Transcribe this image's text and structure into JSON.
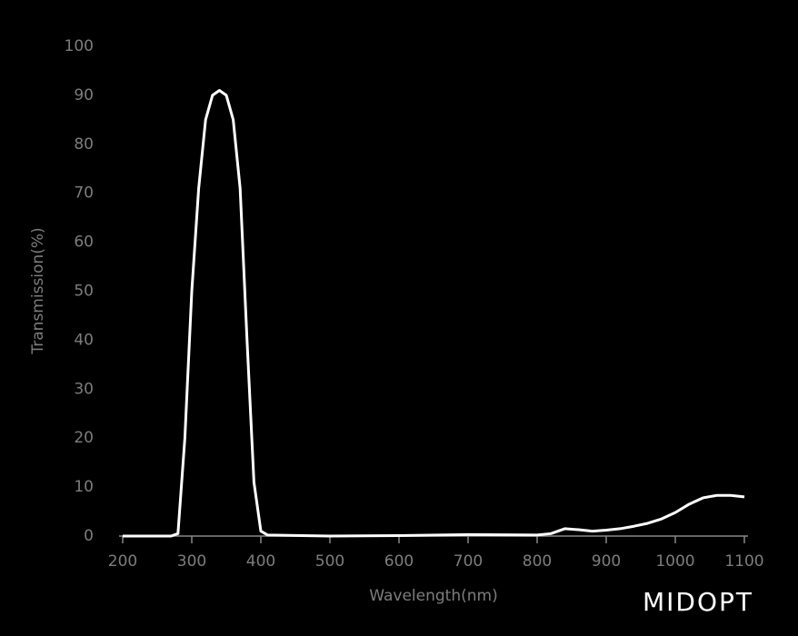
{
  "chart_data": {
    "type": "line",
    "x_label": "Wavelength(nm)",
    "y_label": "Transmission(%)",
    "logo": "MIDOPT",
    "series": [
      {
        "color": "#ffffff",
        "x": [
          200,
          270,
          280,
          290,
          300,
          310,
          320,
          330,
          340,
          350,
          360,
          370,
          380,
          390,
          400,
          410,
          500,
          600,
          700,
          800,
          820,
          840,
          860,
          880,
          900,
          920,
          940,
          960,
          980,
          1000,
          1020,
          1040,
          1060,
          1080,
          1100
        ],
        "values": [
          0,
          0,
          0.5,
          20,
          50,
          71,
          85,
          90,
          91,
          90,
          85,
          71,
          40,
          11,
          1,
          0.2,
          0,
          0.1,
          0.3,
          0.2,
          0.5,
          1.5,
          1.3,
          1.0,
          1.2,
          1.5,
          2.0,
          2.6,
          3.5,
          4.8,
          6.5,
          7.8,
          8.3,
          8.3,
          8.0
        ]
      }
    ],
    "xlim": [
      200,
      1100
    ],
    "ylim": [
      0,
      100
    ],
    "xticks": [
      200,
      300,
      400,
      500,
      600,
      700,
      800,
      900,
      1000,
      1100
    ],
    "yticks": [
      0,
      10,
      20,
      30,
      40,
      50,
      60,
      70,
      80,
      90,
      100
    ]
  }
}
